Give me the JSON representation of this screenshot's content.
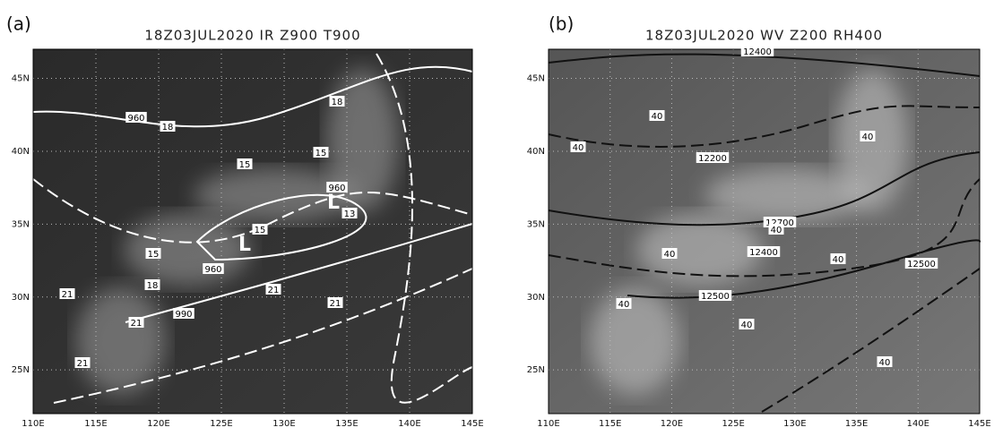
{
  "panels": [
    {
      "label": "(a)",
      "title": "18Z03JUL2020  IR  Z900  T900",
      "xlim": [
        110,
        145
      ],
      "ylim": [
        22,
        47
      ],
      "xticks": [
        {
          "value": 110,
          "label": "110E"
        },
        {
          "value": 115,
          "label": "115E"
        },
        {
          "value": 120,
          "label": "120E"
        },
        {
          "value": 125,
          "label": "125E"
        },
        {
          "value": 130,
          "label": "130E"
        },
        {
          "value": 135,
          "label": "135E"
        },
        {
          "value": 140,
          "label": "140E"
        },
        {
          "value": 145,
          "label": "145E"
        }
      ],
      "yticks": [
        {
          "value": 25,
          "label": "25N"
        },
        {
          "value": 30,
          "label": "30N"
        },
        {
          "value": 35,
          "label": "35N"
        },
        {
          "value": 40,
          "label": "40N"
        },
        {
          "value": 45,
          "label": "45N"
        }
      ],
      "contour_labels": [
        "960",
        "18",
        "18",
        "15",
        "15",
        "960",
        "13",
        "15",
        "15",
        "960",
        "18",
        "21",
        "21",
        "21",
        "21",
        "990",
        "21"
      ],
      "lows": [
        "L",
        "L"
      ]
    },
    {
      "label": "(b)",
      "title": "18Z03JUL2020  WV  Z200  RH400",
      "xlim": [
        110,
        145
      ],
      "ylim": [
        22,
        47
      ],
      "xticks": [
        {
          "value": 110,
          "label": "110E"
        },
        {
          "value": 115,
          "label": "115E"
        },
        {
          "value": 120,
          "label": "120E"
        },
        {
          "value": 125,
          "label": "125E"
        },
        {
          "value": 130,
          "label": "130E"
        },
        {
          "value": 135,
          "label": "135E"
        },
        {
          "value": 140,
          "label": "140E"
        },
        {
          "value": 145,
          "label": "145E"
        }
      ],
      "yticks": [
        {
          "value": 25,
          "label": "25N"
        },
        {
          "value": 30,
          "label": "30N"
        },
        {
          "value": 35,
          "label": "35N"
        },
        {
          "value": 40,
          "label": "40N"
        },
        {
          "value": 45,
          "label": "45N"
        }
      ],
      "contour_labels": [
        "12400",
        "40",
        "40",
        "40",
        "12200",
        "12700",
        "40",
        "40",
        "12400",
        "40",
        "12500",
        "12500",
        "40",
        "40",
        "40"
      ],
      "lows": []
    }
  ]
}
